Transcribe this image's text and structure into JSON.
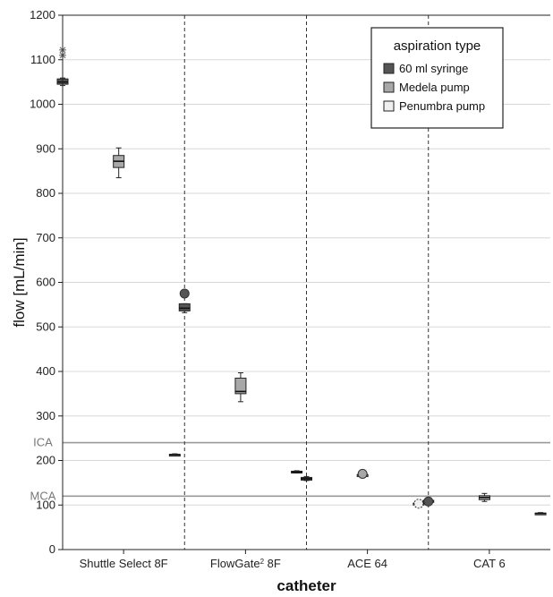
{
  "chart_data": {
    "type": "box",
    "xlabel": "catheter",
    "ylabel": "flow [mL/min]",
    "ylim": [
      0,
      1200
    ],
    "yticks": [
      0,
      100,
      200,
      300,
      400,
      500,
      600,
      700,
      800,
      900,
      1000,
      1100,
      1200
    ],
    "grid": "horizontal",
    "legend_position": "top-right",
    "legend_title": "aspiration type",
    "categories": [
      {
        "label": "Shuttle Select 8F"
      },
      {
        "label_main": "FlowGate",
        "label_sup": "2",
        "label_rest": " 8F"
      },
      {
        "label": "ACE 64"
      },
      {
        "label": "CAT 6"
      }
    ],
    "series": [
      {
        "name": "60 ml syringe",
        "color": "#555555",
        "boxes": [
          {
            "min": 1042,
            "q1": 1045,
            "median": 1050,
            "q3": 1057,
            "max": 1059,
            "outliers": [],
            "extremes": [
              1122,
              1110
            ]
          },
          {
            "min": 532,
            "q1": 536,
            "median": 542,
            "q3": 552,
            "max": 552,
            "outliers": [
              575
            ],
            "extremes": []
          },
          {
            "min": 155,
            "q1": 156,
            "median": 159,
            "q3": 162,
            "max": 164,
            "outliers": [],
            "extremes": []
          },
          {
            "min": 110,
            "q1": 110,
            "median": 110,
            "q3": 110,
            "max": 110,
            "outliers": [
              108
            ],
            "extremes": []
          }
        ]
      },
      {
        "name": "Medela pump",
        "color": "#a8a8a8",
        "boxes": [
          {
            "min": 835,
            "q1": 858,
            "median": 872,
            "q3": 885,
            "max": 902,
            "outliers": [],
            "extremes": []
          },
          {
            "min": 332,
            "q1": 350,
            "median": 355,
            "q3": 385,
            "max": 397,
            "outliers": [],
            "extremes": []
          },
          {
            "min": 168,
            "q1": 168,
            "median": 168,
            "q3": 168,
            "max": 168,
            "outliers": [
              170
            ],
            "extremes": []
          },
          {
            "min": 108,
            "q1": 112,
            "median": 117,
            "q3": 121,
            "max": 126,
            "outliers": [],
            "extremes": []
          }
        ]
      },
      {
        "name": "Penumbra pump",
        "color": "#efefef",
        "boxes": [
          {
            "min": 211,
            "q1": 212,
            "median": 213,
            "q3": 214,
            "max": 215,
            "outliers": [],
            "extremes": []
          },
          {
            "min": 172,
            "q1": 173,
            "median": 174,
            "q3": 176,
            "max": 177,
            "outliers": [],
            "extremes": []
          },
          {
            "min": 104,
            "q1": 104,
            "median": 104,
            "q3": 104,
            "max": 104,
            "outliers": [
              103
            ],
            "extremes": []
          },
          {
            "min": 79,
            "q1": 80,
            "median": 81,
            "q3": 82,
            "max": 83,
            "outliers": [],
            "extremes": []
          }
        ]
      }
    ],
    "reference_lines": [
      {
        "label": "ICA",
        "value": 240
      },
      {
        "label": "MCA",
        "value": 120
      }
    ]
  }
}
